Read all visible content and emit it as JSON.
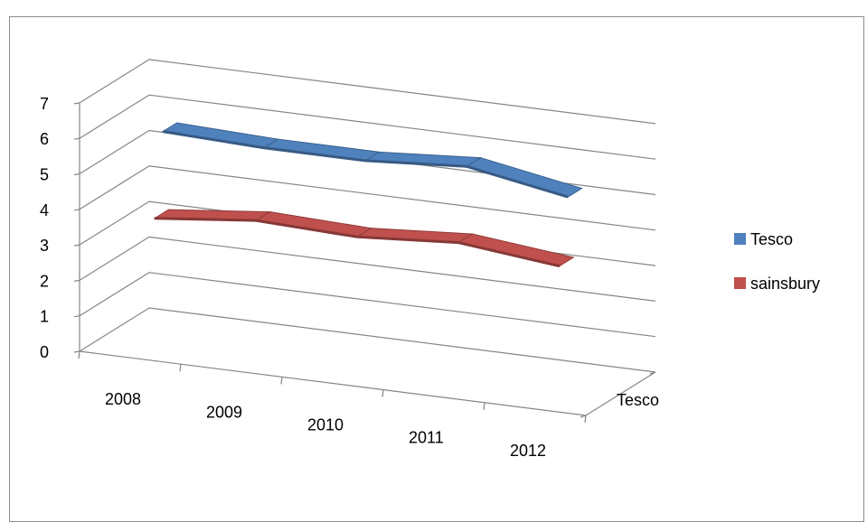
{
  "chart_data": {
    "type": "line",
    "subtype": "3d-line",
    "categories": [
      "2008",
      "2009",
      "2010",
      "2011",
      "2012"
    ],
    "series": [
      {
        "name": "Tesco",
        "values": [
          5.8,
          5.7,
          5.7,
          5.9,
          5.4
        ],
        "color": "#4f81bd"
      },
      {
        "name": "sainsbury",
        "values": [
          3.5,
          3.8,
          3.7,
          3.9,
          3.6
        ],
        "color": "#c0504d"
      }
    ],
    "depth_label": "Tesco",
    "ylim": [
      0,
      7
    ],
    "yticks": [
      "0",
      "1",
      "2",
      "3",
      "4",
      "5",
      "6",
      "7"
    ],
    "grid": true,
    "legend": "right"
  }
}
